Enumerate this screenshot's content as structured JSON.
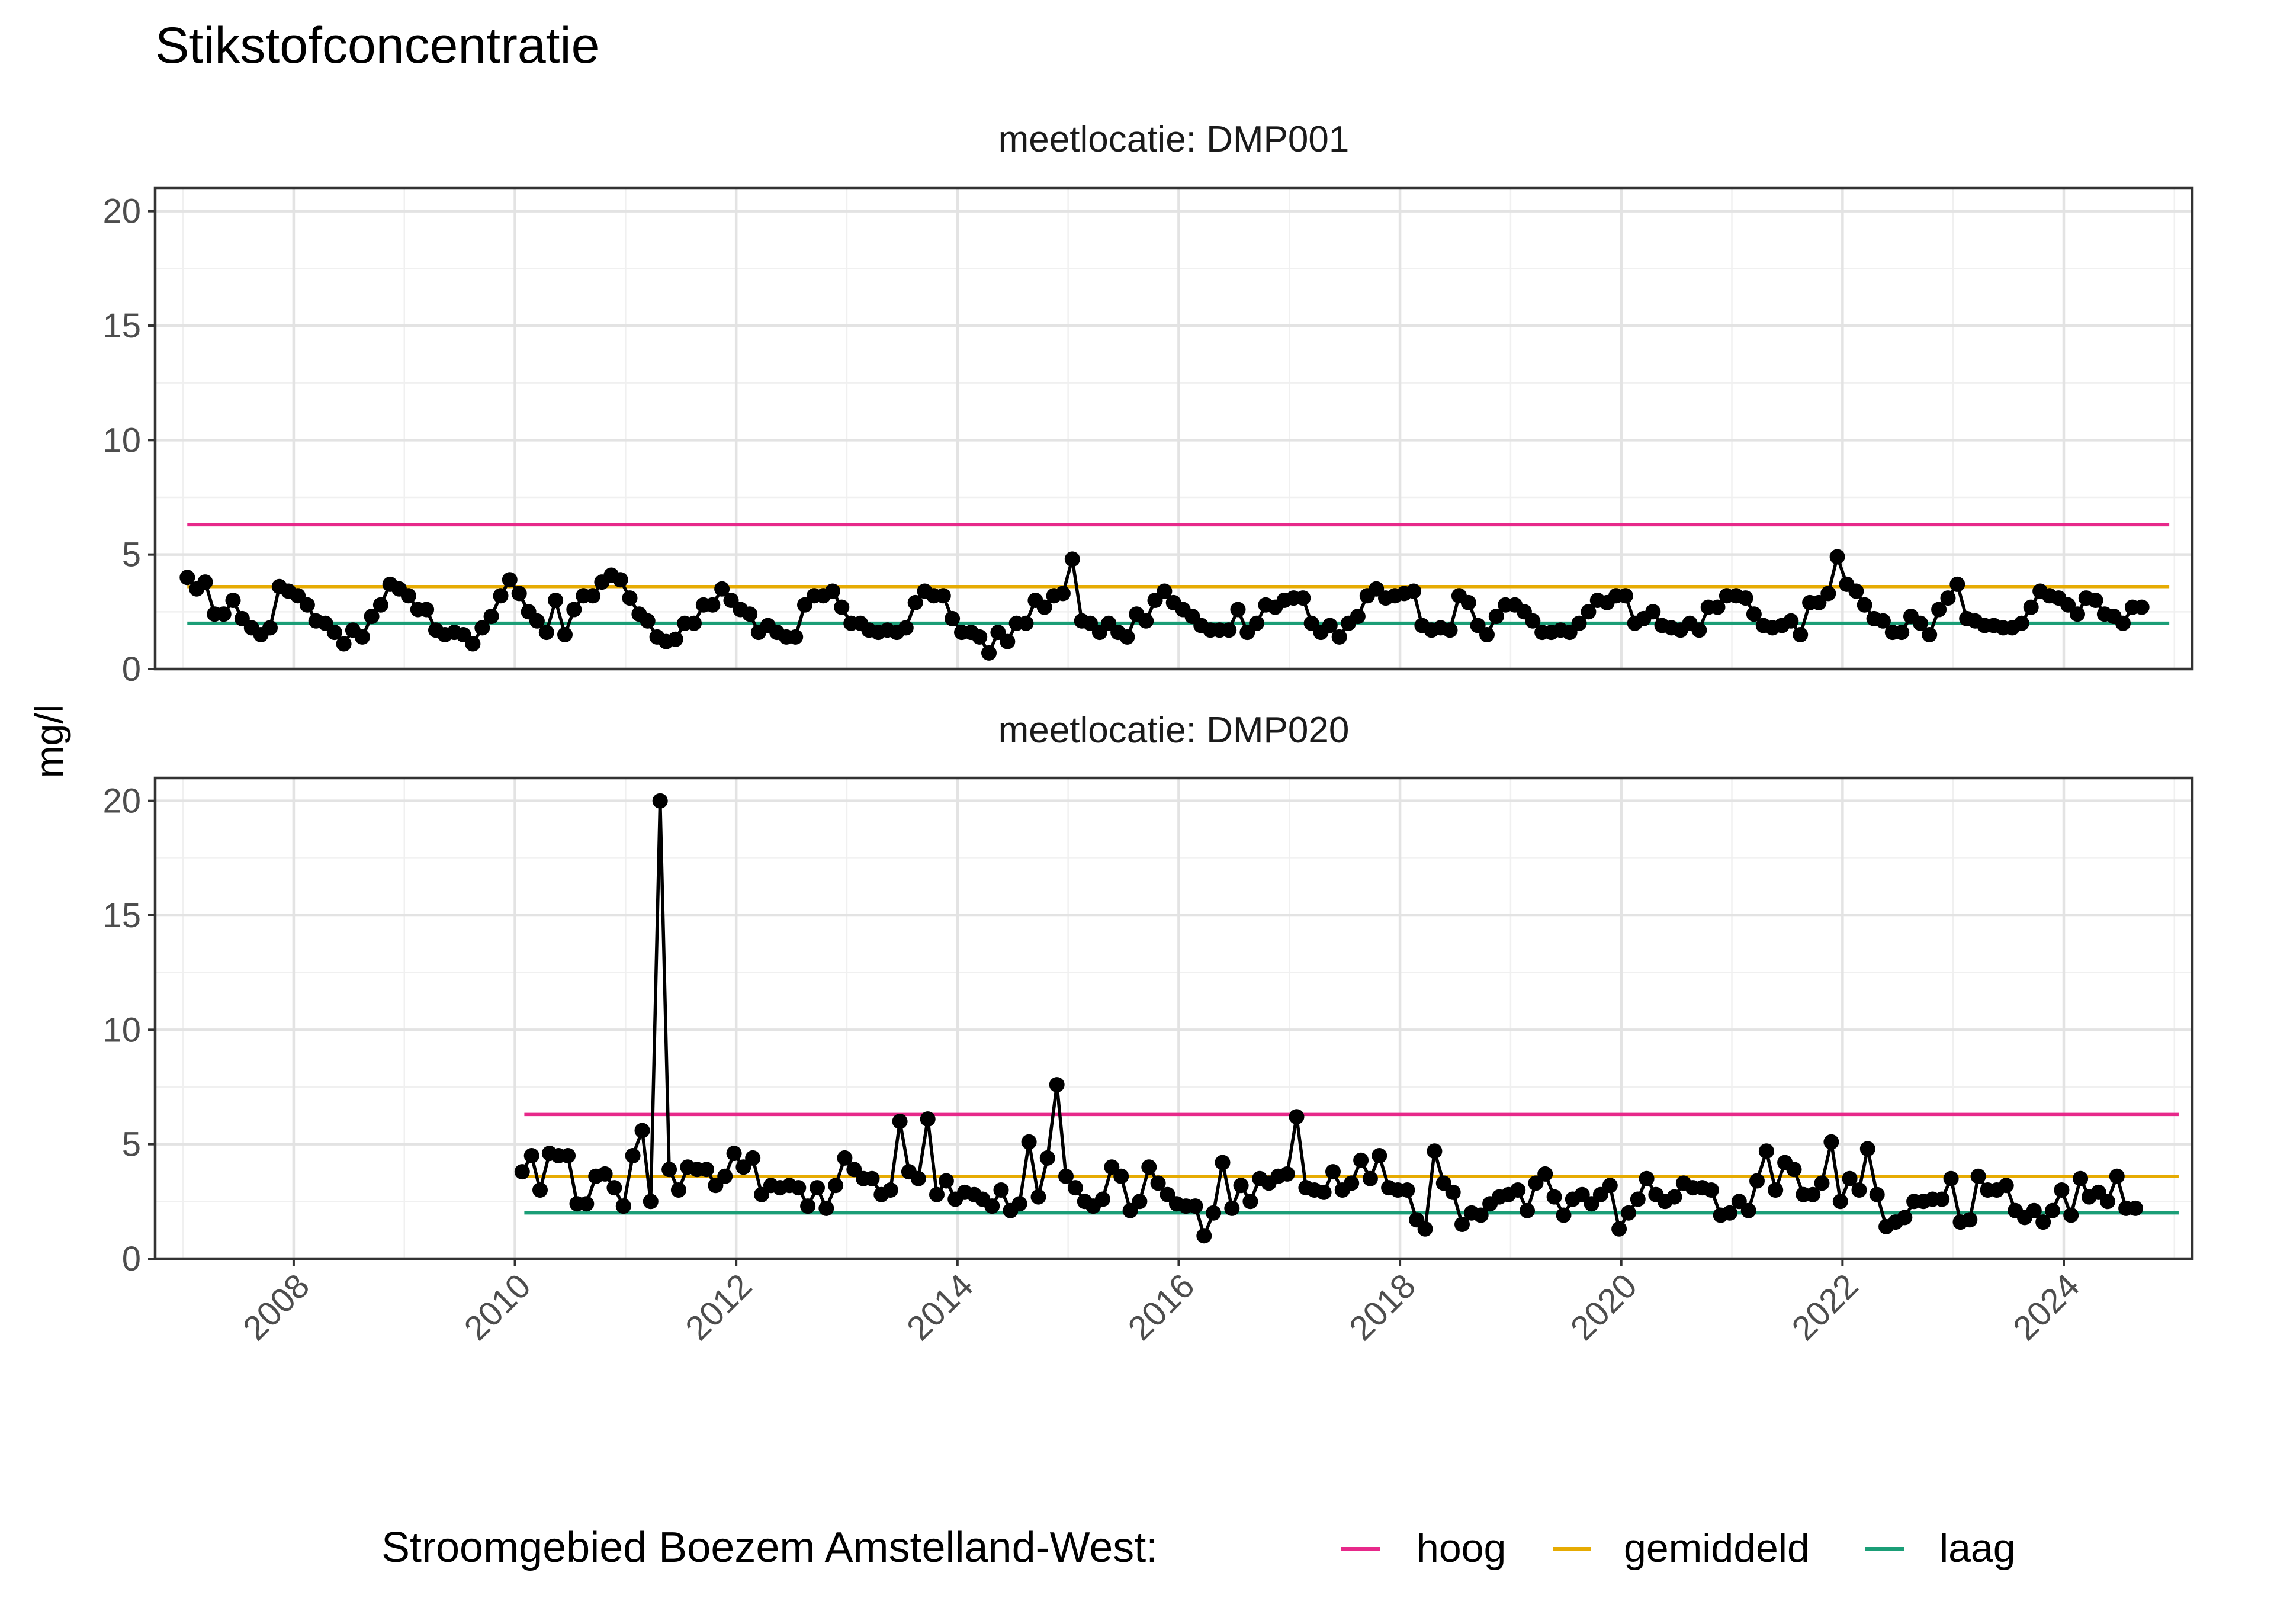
{
  "chart_data": {
    "type": "line",
    "title": "Stikstofconcentratie",
    "ylabel": "mg/l",
    "xlabel": "",
    "xlim": [
      "2006-10-01",
      "2025-03-01"
    ],
    "ylim": [
      0,
      21
    ],
    "y_ticks": [
      "0",
      "5",
      "10",
      "15",
      "20"
    ],
    "x_ticks": [
      "2008",
      "2010",
      "2012",
      "2014",
      "2016",
      "2018",
      "2020",
      "2022",
      "2024"
    ],
    "grid": true,
    "legend_position": "bottom",
    "colors": {
      "hoog": "#e7298a",
      "gemiddeld": "#e6ab02",
      "laag": "#1b9e77",
      "points": "#000000"
    },
    "legend": {
      "title": "Stroomgebied Boezem Amstelland-West:",
      "entries": [
        "hoog",
        "gemiddeld",
        "laag"
      ]
    },
    "panels": [
      {
        "strip": "meetlocatie: DMP001",
        "reference_lines": {
          "hoog": 6.3,
          "gemiddeld": 3.6,
          "laag": 2.0
        },
        "reference_x_range": [
          "2007-01-15",
          "2024-12-15"
        ],
        "series": {
          "name": "",
          "start": "2007-01-15",
          "step_months": 1,
          "values": [
            4.0,
            3.5,
            3.8,
            2.4,
            2.4,
            3.0,
            2.2,
            1.8,
            1.5,
            1.8,
            3.6,
            3.4,
            3.2,
            2.8,
            2.1,
            2.0,
            1.6,
            1.1,
            1.7,
            1.4,
            2.3,
            2.8,
            3.7,
            3.5,
            3.2,
            2.6,
            2.6,
            1.7,
            1.5,
            1.6,
            1.5,
            1.1,
            1.8,
            2.3,
            3.2,
            3.9,
            3.3,
            2.5,
            2.1,
            1.6,
            3.0,
            1.5,
            2.6,
            3.2,
            3.2,
            3.8,
            4.1,
            3.9,
            3.1,
            2.4,
            2.1,
            1.4,
            1.2,
            1.3,
            2.0,
            2.0,
            2.8,
            2.8,
            3.5,
            3.0,
            2.6,
            2.4,
            1.6,
            1.9,
            1.6,
            1.4,
            1.4,
            2.8,
            3.2,
            3.2,
            3.4,
            2.7,
            2.0,
            2.0,
            1.7,
            1.6,
            1.7,
            1.6,
            1.8,
            2.9,
            3.4,
            3.2,
            3.2,
            2.2,
            1.6,
            1.6,
            1.4,
            0.7,
            1.6,
            1.2,
            2.0,
            2.0,
            3.0,
            2.7,
            3.2,
            3.3,
            4.8,
            2.1,
            2.0,
            1.6,
            2.0,
            1.6,
            1.4,
            2.4,
            2.1,
            3.0,
            3.4,
            2.9,
            2.6,
            2.3,
            1.9,
            1.7,
            1.7,
            1.7,
            2.6,
            1.6,
            2.0,
            2.8,
            2.7,
            3.0,
            3.1,
            3.1,
            2.0,
            1.6,
            1.9,
            1.4,
            2.0,
            2.3,
            3.2,
            3.5,
            3.1,
            3.2,
            3.3,
            3.4,
            1.9,
            1.7,
            1.8,
            1.7,
            3.2,
            2.9,
            1.9,
            1.5,
            2.3,
            2.8,
            2.8,
            2.5,
            2.1,
            1.6,
            1.6,
            1.7,
            1.6,
            2.0,
            2.5,
            3.0,
            2.9,
            3.2,
            3.2,
            2.0,
            2.2,
            2.5,
            1.9,
            1.8,
            1.7,
            2.0,
            1.7,
            2.7,
            2.7,
            3.2,
            3.2,
            3.1,
            2.4,
            1.9,
            1.8,
            1.9,
            2.1,
            1.5,
            2.9,
            2.9,
            3.3,
            4.9,
            3.7,
            3.4,
            2.8,
            2.2,
            2.1,
            1.6,
            1.6,
            2.3,
            2.0,
            1.5,
            2.6,
            3.1,
            3.7,
            2.2,
            2.1,
            1.9,
            1.9,
            1.8,
            1.8,
            2.0,
            2.7,
            3.4,
            3.2,
            3.1,
            2.8,
            2.4,
            3.1,
            3.0,
            2.4,
            2.3,
            2.0,
            2.7,
            2.7
          ]
        }
      },
      {
        "strip": "meetlocatie: DMP020",
        "reference_lines": {
          "hoog": 6.3,
          "gemiddeld": 3.6,
          "laag": 2.0
        },
        "reference_x_range": [
          "2010-02-01",
          "2025-01-15"
        ],
        "series": {
          "name": "",
          "start": "2010-01-25",
          "step_months": 1,
          "values": [
            3.8,
            4.5,
            3.0,
            4.6,
            4.5,
            4.5,
            2.4,
            2.4,
            3.6,
            3.7,
            3.1,
            2.3,
            4.5,
            5.6,
            2.5,
            20.0,
            3.9,
            3.0,
            4.0,
            3.9,
            3.9,
            3.2,
            3.6,
            4.6,
            4.0,
            4.4,
            2.8,
            3.2,
            3.1,
            3.2,
            3.1,
            2.3,
            3.1,
            2.2,
            3.2,
            4.4,
            3.9,
            3.5,
            3.5,
            2.8,
            3.0,
            6.0,
            3.8,
            3.5,
            6.1,
            2.8,
            3.4,
            2.6,
            2.9,
            2.8,
            2.6,
            2.3,
            3.0,
            2.1,
            2.4,
            5.1,
            2.7,
            4.4,
            7.6,
            3.6,
            3.1,
            2.5,
            2.3,
            2.6,
            4.0,
            3.6,
            2.1,
            2.5,
            4.0,
            3.3,
            2.8,
            2.4,
            2.3,
            2.3,
            1.0,
            2.0,
            4.2,
            2.2,
            3.2,
            2.5,
            3.5,
            3.3,
            3.6,
            3.7,
            6.2,
            3.1,
            3.0,
            2.9,
            3.8,
            3.0,
            3.3,
            4.3,
            3.5,
            4.5,
            3.1,
            3.0,
            3.0,
            1.7,
            1.3,
            4.7,
            3.3,
            2.9,
            1.5,
            2.0,
            1.9,
            2.4,
            2.7,
            2.8,
            3.0,
            2.1,
            3.3,
            3.7,
            2.7,
            1.9,
            2.6,
            2.8,
            2.4,
            2.8,
            3.2,
            1.3,
            2.0,
            2.6,
            3.5,
            2.8,
            2.5,
            2.7,
            3.3,
            3.1,
            3.1,
            3.0,
            1.9,
            2.0,
            2.5,
            2.1,
            3.4,
            4.7,
            3.0,
            4.2,
            3.9,
            2.8,
            2.8,
            3.3,
            5.1,
            2.5,
            3.5,
            3.0,
            4.8,
            2.8,
            1.4,
            1.6,
            1.8,
            2.5,
            2.5,
            2.6,
            2.6,
            3.5,
            1.6,
            1.7,
            3.6,
            3.0,
            3.0,
            3.2,
            2.1,
            1.8,
            2.1,
            1.6,
            2.1,
            3.0,
            1.9,
            3.5,
            2.7,
            2.9,
            2.5,
            3.6,
            2.2,
            2.2
          ]
        }
      }
    ]
  }
}
